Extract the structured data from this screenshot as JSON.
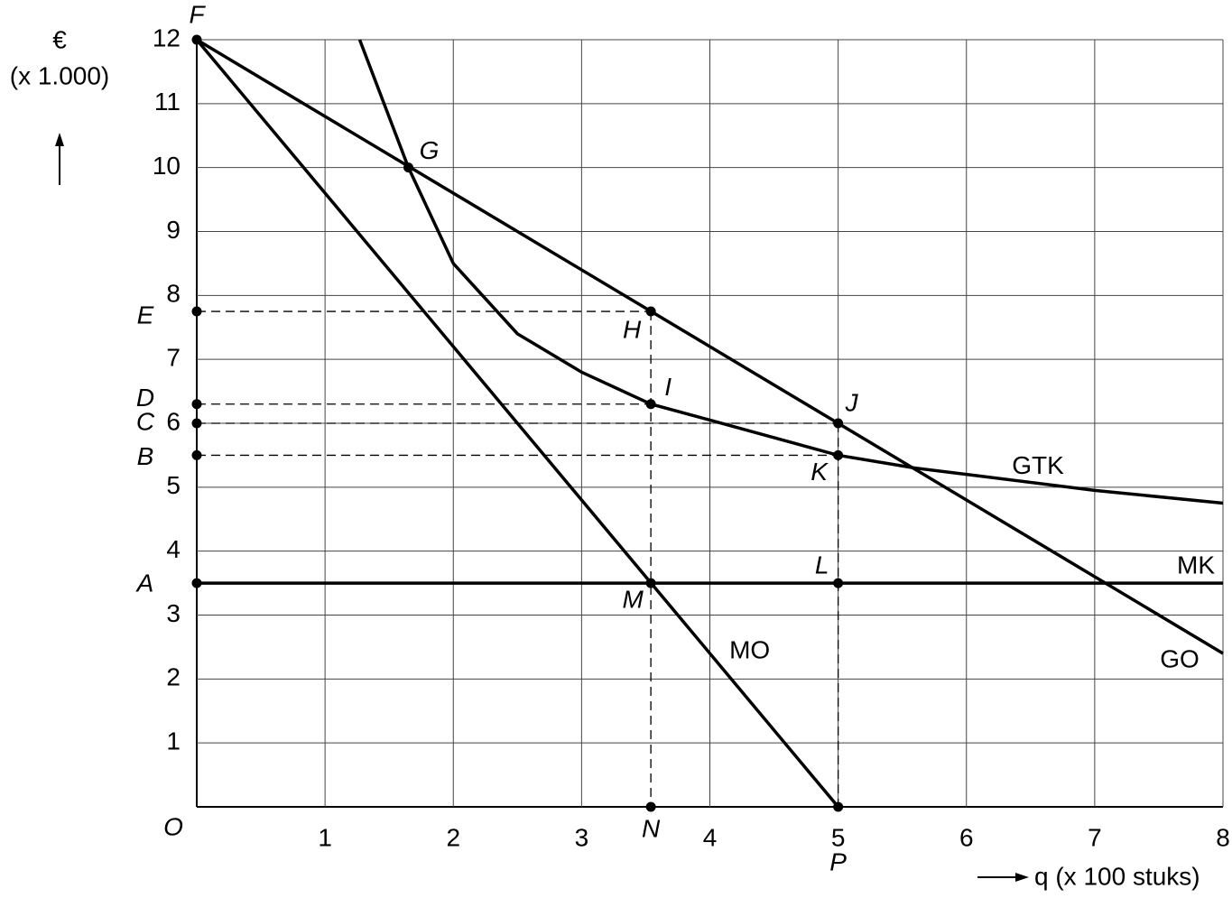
{
  "chart_data": {
    "type": "line",
    "y_label_top": "€",
    "y_label_unit": "(x 1.000)",
    "x_label": "q (x 100 stuks)",
    "origin_label": "O",
    "xlim": [
      0,
      8
    ],
    "ylim": [
      0,
      12
    ],
    "xticks": [
      1,
      2,
      3,
      4,
      5,
      6,
      7,
      8
    ],
    "yticks": [
      1,
      2,
      3,
      4,
      5,
      6,
      7,
      8,
      9,
      10,
      11,
      12
    ],
    "grid": true,
    "series": [
      {
        "name": "GO",
        "color": "#000000",
        "x": [
          0,
          8
        ],
        "values": [
          12,
          2.4
        ]
      },
      {
        "name": "MK",
        "color": "#000000",
        "x": [
          0,
          8
        ],
        "values": [
          3.5,
          3.5
        ]
      },
      {
        "name": "GTK",
        "color": "#000000",
        "x": [
          1.27,
          1.65,
          2,
          2.5,
          3,
          3.54,
          4,
          5,
          5.6,
          6,
          7,
          8
        ],
        "values": [
          12,
          10,
          8.5,
          7.4,
          6.8,
          6.3,
          6.05,
          5.5,
          5.3,
          5.2,
          4.95,
          4.75
        ]
      },
      {
        "name": "MO",
        "color": "#000000",
        "x": [
          0,
          5
        ],
        "values": [
          12,
          0
        ]
      }
    ],
    "points": [
      {
        "label": "F",
        "x": 0,
        "y": 12
      },
      {
        "label": "G",
        "x": 1.65,
        "y": 10
      },
      {
        "label": "H",
        "x": 3.54,
        "y": 7.75
      },
      {
        "label": "I",
        "x": 3.54,
        "y": 6.3
      },
      {
        "label": "J",
        "x": 5,
        "y": 6
      },
      {
        "label": "K",
        "x": 5,
        "y": 5.5
      },
      {
        "label": "L",
        "x": 5,
        "y": 3.5
      },
      {
        "label": "M",
        "x": 3.54,
        "y": 3.5
      },
      {
        "label": "N",
        "x": 3.54,
        "y": 0
      },
      {
        "label": "P",
        "x": 5,
        "y": 0
      },
      {
        "label": "A",
        "x": 0,
        "y": 3.5
      },
      {
        "label": "B",
        "x": 0,
        "y": 5.5
      },
      {
        "label": "C",
        "x": 0,
        "y": 6
      },
      {
        "label": "D",
        "x": 0,
        "y": 6.3
      },
      {
        "label": "E",
        "x": 0,
        "y": 7.75
      }
    ]
  }
}
